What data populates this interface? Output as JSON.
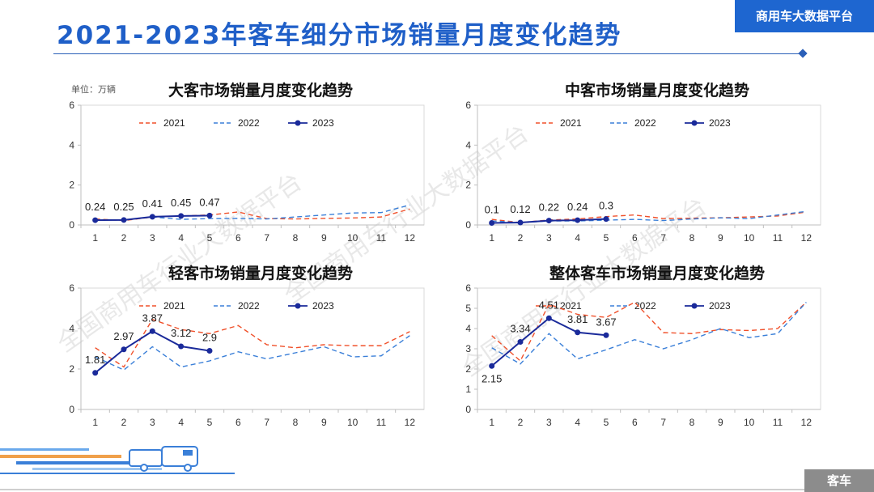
{
  "header": {
    "title": "2021-2023年客车细分市场销量月度变化趋势",
    "brand": "商用车大数据平台",
    "footer_tag": "客车",
    "watermark": "全国商用车行业大数据平台"
  },
  "colors": {
    "s2021": "#f0502a",
    "s2022": "#3a7fd8",
    "s2023": "#1a2a9a",
    "axis": "#bfbfbf",
    "title_blue": "#1f5fc8"
  },
  "chart_data": [
    {
      "type": "line",
      "title": "大客市场销量月度变化趋势",
      "unit_label": "单位：万辆",
      "categories": [
        "1",
        "2",
        "3",
        "4",
        "5",
        "6",
        "7",
        "8",
        "9",
        "10",
        "11",
        "12"
      ],
      "ylim": [
        0,
        6
      ],
      "yticks": [
        0,
        2,
        4,
        6
      ],
      "legend": "top-center",
      "series": [
        {
          "name": "2021",
          "style": "dashed",
          "values": [
            0.3,
            0.22,
            0.4,
            0.45,
            0.5,
            0.65,
            0.32,
            0.3,
            0.33,
            0.35,
            0.4,
            0.8
          ]
        },
        {
          "name": "2022",
          "style": "dashed",
          "values": [
            0.25,
            0.25,
            0.4,
            0.28,
            0.32,
            0.33,
            0.3,
            0.4,
            0.5,
            0.6,
            0.62,
            1.0
          ]
        },
        {
          "name": "2023",
          "style": "solid",
          "values": [
            0.24,
            0.25,
            0.41,
            0.45,
            0.47
          ]
        }
      ],
      "labels": [
        "0.24",
        "0.25",
        "0.41",
        "0.45",
        "0.47"
      ]
    },
    {
      "type": "line",
      "title": "中客市场销量月度变化趋势",
      "categories": [
        "1",
        "2",
        "3",
        "4",
        "5",
        "6",
        "7",
        "8",
        "9",
        "10",
        "11",
        "12"
      ],
      "ylim": [
        0,
        6
      ],
      "yticks": [
        0,
        2,
        4,
        6
      ],
      "legend": "top-center",
      "series": [
        {
          "name": "2021",
          "style": "dashed",
          "values": [
            0.28,
            0.12,
            0.25,
            0.3,
            0.42,
            0.5,
            0.32,
            0.34,
            0.36,
            0.4,
            0.45,
            0.65
          ]
        },
        {
          "name": "2022",
          "style": "dashed",
          "values": [
            0.2,
            0.12,
            0.2,
            0.2,
            0.24,
            0.28,
            0.22,
            0.3,
            0.36,
            0.32,
            0.5,
            0.68
          ]
        },
        {
          "name": "2023",
          "style": "solid",
          "values": [
            0.1,
            0.12,
            0.22,
            0.24,
            0.3
          ]
        }
      ],
      "labels": [
        "0.1",
        "0.12",
        "0.22",
        "0.24",
        "0.3"
      ]
    },
    {
      "type": "line",
      "title": "轻客市场销量月度变化趋势",
      "categories": [
        "1",
        "2",
        "3",
        "4",
        "5",
        "6",
        "7",
        "8",
        "9",
        "10",
        "11",
        "12"
      ],
      "ylim": [
        0,
        6
      ],
      "yticks": [
        0,
        2,
        4,
        6
      ],
      "legend": "top-center",
      "series": [
        {
          "name": "2021",
          "style": "dashed",
          "values": [
            3.05,
            2.1,
            4.45,
            3.95,
            3.75,
            4.15,
            3.2,
            3.05,
            3.2,
            3.15,
            3.15,
            3.85
          ]
        },
        {
          "name": "2022",
          "style": "dashed",
          "values": [
            2.6,
            1.95,
            3.1,
            2.1,
            2.4,
            2.85,
            2.5,
            2.8,
            3.1,
            2.6,
            2.65,
            3.65
          ]
        },
        {
          "name": "2023",
          "style": "solid",
          "values": [
            1.81,
            2.97,
            3.87,
            3.12,
            2.9
          ]
        }
      ],
      "labels": [
        "1.81",
        "2.97",
        "3.87",
        "3.12",
        "2.9"
      ]
    },
    {
      "type": "line",
      "title": "整体客车市场销量月度变化趋势",
      "categories": [
        "1",
        "2",
        "3",
        "4",
        "5",
        "6",
        "7",
        "8",
        "9",
        "10",
        "11",
        "12"
      ],
      "ylim": [
        0,
        6
      ],
      "yticks": [
        0,
        1,
        2,
        3,
        4,
        5,
        6
      ],
      "legend": "top-center",
      "series": [
        {
          "name": "2021",
          "style": "dashed",
          "values": [
            3.65,
            2.4,
            5.2,
            4.7,
            4.55,
            5.3,
            3.8,
            3.75,
            3.95,
            3.9,
            4.0,
            5.3
          ]
        },
        {
          "name": "2022",
          "style": "dashed",
          "values": [
            3.05,
            2.25,
            3.75,
            2.5,
            2.95,
            3.45,
            3.0,
            3.45,
            4.0,
            3.55,
            3.75,
            5.3
          ]
        },
        {
          "name": "2023",
          "style": "solid",
          "values": [
            2.15,
            3.34,
            4.51,
            3.81,
            3.67
          ]
        }
      ],
      "labels": [
        "2.15",
        "3.34",
        "4.51",
        "3.81",
        "3.67"
      ]
    }
  ]
}
